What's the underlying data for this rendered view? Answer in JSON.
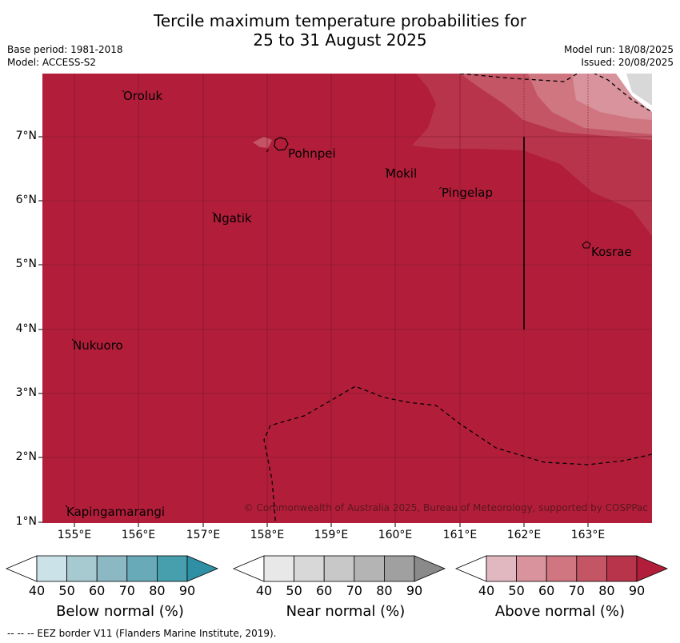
{
  "title_line1": "Tercile maximum temperature probabilities for",
  "title_line2": "25 to 31 August 2025",
  "base_period": "Base period: 1981-2018",
  "model": "Model: ACCESS-S2",
  "model_run": "Model run: 18/08/2025",
  "issued": "Issued: 20/08/2025",
  "x_ticks": [
    "155°E",
    "156°E",
    "157°E",
    "158°E",
    "159°E",
    "160°E",
    "161°E",
    "162°E",
    "163°E"
  ],
  "y_ticks": [
    "7°N",
    "6°N",
    "5°N",
    "4°N",
    "3°N",
    "2°N",
    "1°N"
  ],
  "places": {
    "oroluk": "Oroluk",
    "pohnpei": "Pohnpei",
    "mokil": "Mokil",
    "pingelap": "Pingelap",
    "ngatik": "Ngatik",
    "kosrae": "Kosrae",
    "nukuoro": "Nukuoro",
    "kapingamarangi": "Kapingamarangi"
  },
  "copyright": "© Commonwealth of Australia 2025, Bureau of Meteorology, supported by COSPPac",
  "colorbars": {
    "ticks": [
      "40",
      "50",
      "60",
      "70",
      "80",
      "90"
    ],
    "below": {
      "label": "Below normal (%)",
      "colors": [
        "#ffffff",
        "#cbe2e8",
        "#a7c9d0",
        "#8bb8c3",
        "#69aab9",
        "#479ead",
        "#2e8fa5"
      ]
    },
    "near": {
      "label": "Near normal (%)",
      "colors": [
        "#ffffff",
        "#e8e8e8",
        "#d8d8d8",
        "#c8c8c8",
        "#b4b4b4",
        "#a0a0a0",
        "#8a8a8a"
      ]
    },
    "above": {
      "label": "Above normal (%)",
      "colors": [
        "#ffffff",
        "#e2b8c0",
        "#d8939c",
        "#cf7680",
        "#c45565",
        "#b8344b",
        "#b21e3a"
      ]
    }
  },
  "footer": "--  --  -- EEZ border V11 (Flanders Marine Institute, 2019)."
}
